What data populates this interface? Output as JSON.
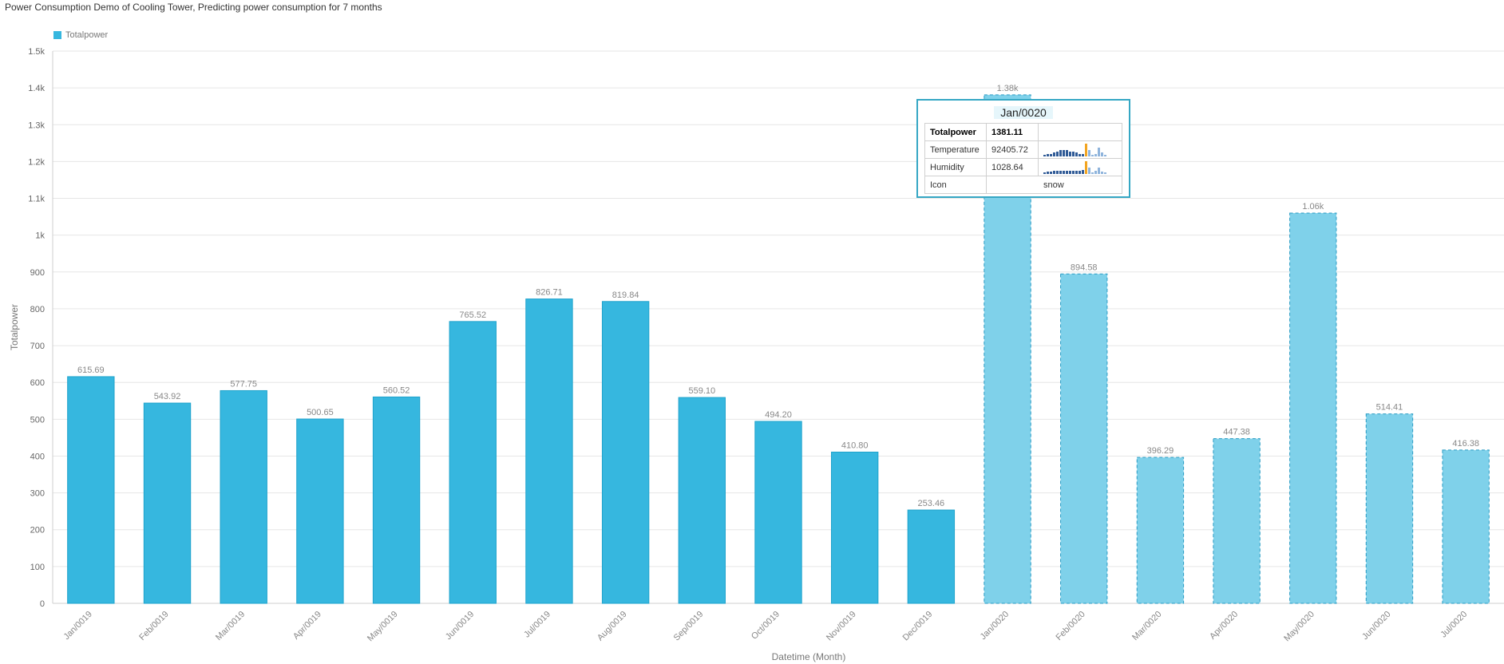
{
  "title": "Power Consumption Demo of Cooling Tower, Predicting power consumption for 7 months",
  "colors": {
    "actual": "#36b7df",
    "actual_border": "#1fa3cc",
    "predicted": "#7fd1ea",
    "predicted_border": "#2a9cc4",
    "grid": "#e6e6e6",
    "spark_bar": "#2f5a96",
    "spark_highlight": "#f2a522",
    "spark_light": "#8fb4dc"
  },
  "chart_data": {
    "type": "bar",
    "title": "Power Consumption Demo of Cooling Tower, Predicting power consumption for 7 months",
    "xlabel": "Datetime (Month)",
    "ylabel": "Totalpower",
    "ylim": [
      0,
      1500
    ],
    "yticks": [
      "0",
      "100",
      "200",
      "300",
      "400",
      "500",
      "600",
      "700",
      "800",
      "900",
      "1k",
      "1.1k",
      "1.2k",
      "1.3k",
      "1.4k",
      "1.5k"
    ],
    "ytick_values": [
      0,
      100,
      200,
      300,
      400,
      500,
      600,
      700,
      800,
      900,
      1000,
      1100,
      1200,
      1300,
      1400,
      1500
    ],
    "grid": true,
    "legend_position": "top-left",
    "categories": [
      "Jan/0019",
      "Feb/0019",
      "Mar/0019",
      "Apr/0019",
      "May/0019",
      "Jun/0019",
      "Jul/0019",
      "Aug/0019",
      "Sep/0019",
      "Oct/0019",
      "Nov/0019",
      "Dec/0019",
      "Jan/0020",
      "Feb/0020",
      "Mar/0020",
      "Apr/0020",
      "May/0020",
      "Jun/0020",
      "Jul/0020"
    ],
    "series": [
      {
        "name": "Totalpower",
        "values": [
          615.69,
          543.92,
          577.75,
          500.65,
          560.52,
          765.52,
          826.71,
          819.84,
          559.1,
          494.2,
          410.8,
          253.46,
          1381.11,
          894.58,
          396.29,
          447.38,
          1060,
          514.41,
          416.38
        ],
        "labels": [
          "615.69",
          "543.92",
          "577.75",
          "500.65",
          "560.52",
          "765.52",
          "826.71",
          "819.84",
          "559.10",
          "494.20",
          "410.80",
          "253.46",
          "1.38k",
          "894.58",
          "396.29",
          "447.38",
          "1.06k",
          "514.41",
          "416.38"
        ],
        "predicted": [
          false,
          false,
          false,
          false,
          false,
          false,
          false,
          false,
          false,
          false,
          false,
          false,
          true,
          true,
          true,
          true,
          true,
          true,
          true
        ]
      }
    ]
  },
  "tooltip": {
    "header": "Jan/0020",
    "rows": [
      {
        "key": "Totalpower",
        "value": "1381.11"
      },
      {
        "key": "Temperature",
        "value": "92405.72"
      },
      {
        "key": "Humidity",
        "value": "1028.64"
      },
      {
        "key": "Icon",
        "value": "snow"
      }
    ],
    "spark_temperature": [
      1,
      2,
      2,
      3,
      4,
      5,
      5,
      5,
      4,
      4,
      3,
      2,
      2,
      11,
      5,
      1,
      2,
      7,
      3,
      1
    ],
    "spark_humidity": [
      1,
      2,
      2,
      3,
      3,
      3,
      3,
      3,
      3,
      3,
      3,
      3,
      4,
      13,
      6,
      1,
      3,
      6,
      2,
      1
    ]
  }
}
